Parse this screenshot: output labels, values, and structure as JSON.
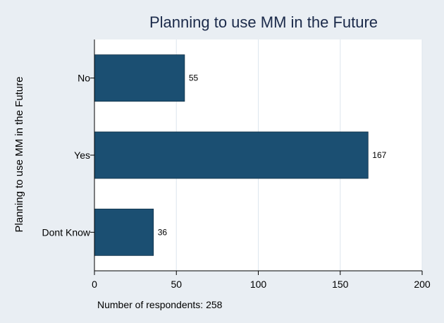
{
  "chart_data": {
    "type": "bar",
    "orientation": "horizontal",
    "title": "Planning to use MM in the Future",
    "ylabel": "Planning to use MM in the Future",
    "xlabel": "",
    "categories": [
      "No",
      "Yes",
      "Dont Know"
    ],
    "values": [
      55,
      167,
      36
    ],
    "data_labels": [
      "55",
      "167",
      "36"
    ],
    "xlim": [
      0,
      200
    ],
    "xticks": [
      0,
      50,
      100,
      150,
      200
    ],
    "xtick_labels": [
      "0",
      "50",
      "100",
      "150",
      "200"
    ],
    "grid": true,
    "note": "Number of respondents: 258",
    "colors": {
      "bar": "#1b4f72",
      "background": "#e9eef3",
      "plot_background": "#ffffff",
      "grid": "#dde6ee",
      "title": "#1b2a4a"
    }
  }
}
